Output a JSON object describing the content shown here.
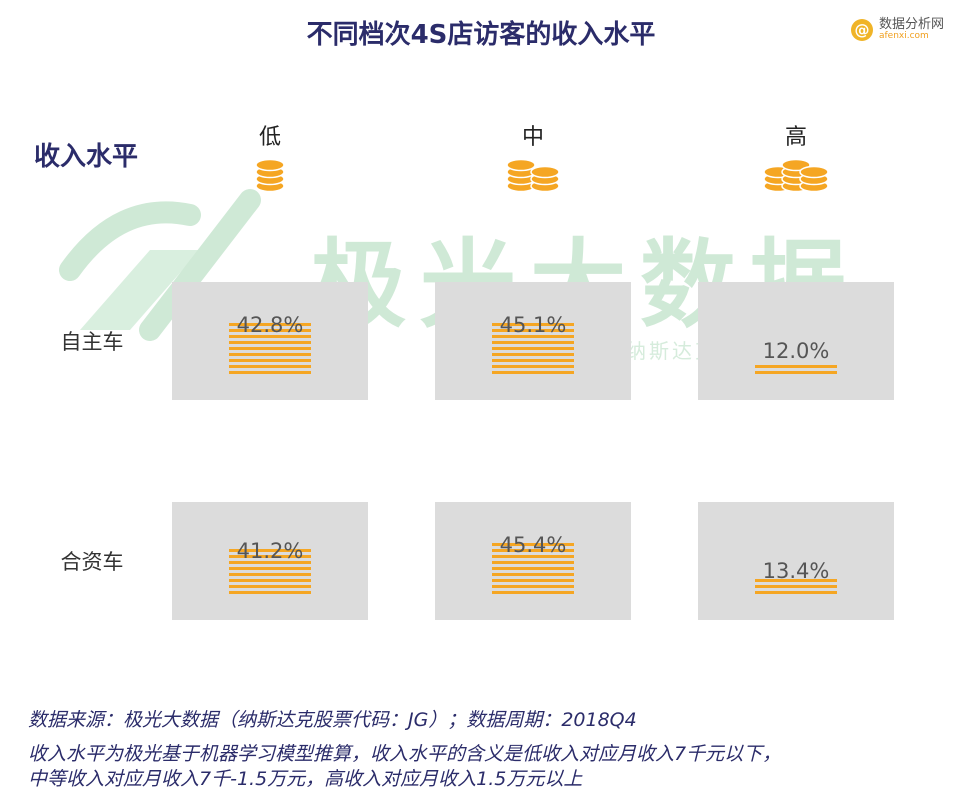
{
  "title": "不同档次4S店访客的收入水平",
  "brand": {
    "name": "数据分析网",
    "url": "afenxi.com",
    "icon": "at-icon"
  },
  "section_label": "收入水平",
  "watermark": {
    "main": "极光大数据",
    "sub": "纳斯达克股票代码：JG"
  },
  "colors": {
    "title": "#2b2c6a",
    "bar": "#f5a623",
    "box": "#dcdcdc",
    "coin": "#f5a623",
    "watermark": "#cfe9d6"
  },
  "chart_data": {
    "type": "bar",
    "categories": [
      "低",
      "中",
      "高"
    ],
    "category_icons": [
      "coin-stack-1-icon",
      "coin-stack-2-icon",
      "coin-stack-3-icon"
    ],
    "series": [
      {
        "name": "自主车",
        "values": [
          42.8,
          45.1,
          12.0
        ],
        "labels": [
          "42.8%",
          "45.1%",
          "12.0%"
        ]
      },
      {
        "name": "合资车",
        "values": [
          41.2,
          45.4,
          13.4
        ],
        "labels": [
          "41.2%",
          "45.4%",
          "13.4%"
        ]
      }
    ],
    "unit": "%"
  },
  "footer": {
    "source": "数据来源：极光大数据（纳斯达克股票代码：JG）；数据周期：2018Q4",
    "note_line1": "收入水平为极光基于机器学习模型推算，收入水平的含义是低收入对应月收入7千元以下，",
    "note_line2": "中等收入对应月收入7千-1.5万元，高收入对应月收入1.5万元以上"
  }
}
